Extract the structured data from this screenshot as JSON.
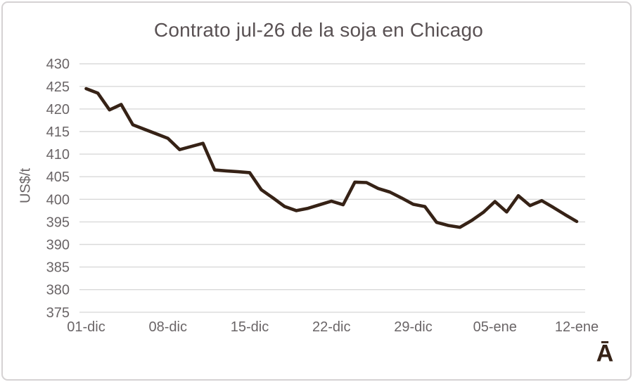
{
  "title": "Contrato jul-26 de la soja en Chicago",
  "watermark_glyph": "Ā",
  "colors": {
    "series_line": "#362216",
    "gridline": "#d9d9d9",
    "title_text": "#595153",
    "axis_text": "#6a6567",
    "frame_border": "#d5d2d3",
    "background": "#ffffff"
  },
  "chart_data": {
    "type": "line",
    "title": "Contrato jul-26 de la soja en Chicago",
    "xlabel": "",
    "ylabel": "US$/t",
    "ylim": [
      375,
      430
    ],
    "ytick_step": 5,
    "grid": true,
    "legend": "none",
    "y_tick_labels": [
      "430",
      "425",
      "420",
      "415",
      "410",
      "405",
      "400",
      "395",
      "390",
      "385",
      "380",
      "375"
    ],
    "x_tick_labels": [
      "01-dic",
      "08-dic",
      "15-dic",
      "22-dic",
      "29-dic",
      "05-ene",
      "12-ene"
    ],
    "x_tick_positions": [
      0,
      7,
      14,
      21,
      28,
      35,
      42
    ],
    "x": [
      "01-dic",
      "02-dic",
      "03-dic",
      "04-dic",
      "05-dic",
      "06-dic",
      "07-dic",
      "08-dic",
      "09-dic",
      "10-dic",
      "11-dic",
      "12-dic",
      "13-dic",
      "14-dic",
      "15-dic",
      "16-dic",
      "17-dic",
      "18-dic",
      "19-dic",
      "20-dic",
      "21-dic",
      "22-dic",
      "23-dic",
      "24-dic",
      "25-dic",
      "26-dic",
      "27-dic",
      "28-dic",
      "29-dic",
      "30-dic",
      "31-dic",
      "01-ene",
      "02-ene",
      "03-ene",
      "04-ene",
      "05-ene",
      "06-ene",
      "07-ene",
      "08-ene",
      "09-ene",
      "10-ene",
      "11-ene",
      "12-ene"
    ],
    "series": [
      {
        "name": "Contrato jul-26 soja Chicago (US$/t)",
        "values": [
          424.5,
          423.5,
          419.8,
          421.0,
          416.5,
          415.5,
          414.5,
          413.5,
          411.0,
          411.7,
          412.4,
          406.5,
          406.3,
          406.1,
          405.9,
          402.1,
          400.3,
          398.4,
          397.5,
          398.0,
          398.8,
          399.6,
          398.8,
          403.8,
          403.7,
          402.4,
          401.6,
          400.3,
          398.9,
          398.4,
          394.9,
          394.2,
          393.8,
          395.3,
          397.1,
          399.5,
          397.2,
          400.8,
          398.6,
          399.7,
          398.2,
          396.6,
          395.1
        ]
      }
    ]
  }
}
